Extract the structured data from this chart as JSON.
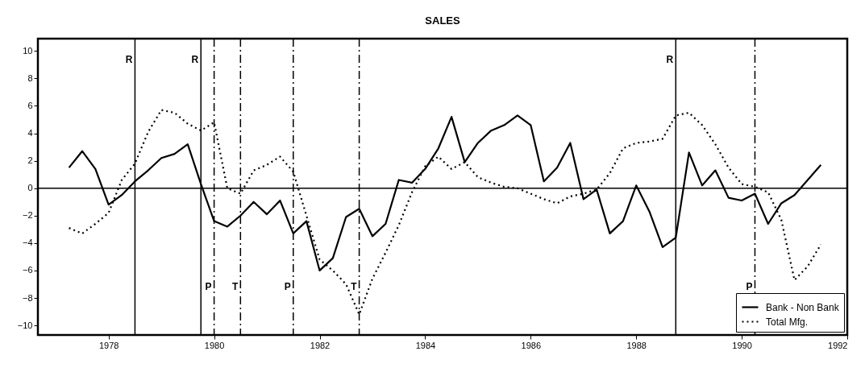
{
  "chart_data": {
    "type": "line",
    "title": "SALES",
    "x": [
      1977.25,
      1977.5,
      1977.75,
      1978.0,
      1978.25,
      1978.5,
      1978.75,
      1979.0,
      1979.25,
      1979.5,
      1979.75,
      1980.0,
      1980.25,
      1980.5,
      1980.75,
      1981.0,
      1981.25,
      1981.5,
      1981.75,
      1982.0,
      1982.25,
      1982.5,
      1982.75,
      1983.0,
      1983.25,
      1983.5,
      1983.75,
      1984.0,
      1984.25,
      1984.5,
      1984.75,
      1985.0,
      1985.25,
      1985.5,
      1985.75,
      1986.0,
      1986.25,
      1986.5,
      1986.75,
      1987.0,
      1987.25,
      1987.5,
      1987.75,
      1988.0,
      1988.25,
      1988.5,
      1988.75,
      1989.0,
      1989.25,
      1989.5,
      1989.75,
      1990.0,
      1990.25,
      1990.5,
      1990.75,
      1991.0,
      1991.25,
      1991.5
    ],
    "series": [
      {
        "name": "Bank - Non Bank",
        "color": "#000000",
        "line_style": "solid",
        "values": [
          1.5,
          2.7,
          1.4,
          -1.2,
          -0.5,
          0.5,
          1.3,
          2.2,
          2.5,
          3.2,
          0.3,
          -2.4,
          -2.8,
          -2.0,
          -1.0,
          -1.9,
          -0.9,
          -3.3,
          -2.4,
          -6.0,
          -5.1,
          -2.1,
          -1.5,
          -3.5,
          -2.6,
          0.6,
          0.4,
          1.4,
          2.9,
          5.2,
          1.9,
          3.3,
          4.2,
          4.6,
          5.3,
          4.6,
          0.5,
          1.5,
          3.3,
          -0.8,
          -0.1,
          -3.3,
          -2.4,
          0.2,
          -1.7,
          -4.3,
          -3.6,
          2.6,
          0.2,
          1.3,
          -0.7,
          -0.9,
          -0.4,
          -2.6,
          -1.1,
          -0.5,
          0.6,
          1.7
        ]
      },
      {
        "name": "Total Mfg.",
        "color": "#000000",
        "line_style": "dotted",
        "values": [
          -2.9,
          -3.3,
          -2.6,
          -1.8,
          0.6,
          1.8,
          4.1,
          5.7,
          5.5,
          4.7,
          4.2,
          4.8,
          0.0,
          -0.4,
          1.3,
          1.7,
          2.3,
          1.2,
          -2.0,
          -5.2,
          -6.0,
          -7.0,
          -9.2,
          -6.6,
          -4.7,
          -2.7,
          -0.3,
          1.6,
          2.3,
          1.4,
          1.9,
          0.8,
          0.4,
          0.1,
          0.0,
          -0.4,
          -0.8,
          -1.1,
          -0.6,
          -0.4,
          -0.1,
          1.1,
          2.9,
          3.3,
          3.4,
          3.6,
          5.3,
          5.5,
          4.6,
          3.2,
          1.5,
          0.3,
          0.1,
          -0.3,
          -2.3,
          -6.7,
          -5.7,
          -4.1
        ]
      }
    ],
    "xlim": [
      1976.66,
      1992
    ],
    "xticks": [
      1978,
      1980,
      1982,
      1984,
      1986,
      1988,
      1990,
      1992
    ],
    "ylim": [
      -10.7,
      10.9
    ],
    "yticks": [
      -10,
      -8,
      -6,
      -4,
      -2,
      0,
      2,
      4,
      6,
      8,
      10
    ],
    "ref_lines": [
      {
        "axis": "y",
        "value": 0,
        "label": null,
        "line_style": "solid"
      },
      {
        "axis": "x",
        "value": 1978.5,
        "label": "R",
        "line_style": "solid"
      },
      {
        "axis": "x",
        "value": 1979.75,
        "label": "R",
        "line_style": "solid"
      },
      {
        "axis": "x",
        "value": 1988.75,
        "label": "R",
        "line_style": "solid"
      },
      {
        "axis": "x",
        "value": 1980.0,
        "label": "P",
        "line_style": "dashdot"
      },
      {
        "axis": "x",
        "value": 1980.5,
        "label": "T",
        "line_style": "dashdot"
      },
      {
        "axis": "x",
        "value": 1981.5,
        "label": "P",
        "line_style": "dashdot"
      },
      {
        "axis": "x",
        "value": 1982.75,
        "label": "T",
        "line_style": "dashdot"
      },
      {
        "axis": "x",
        "value": 1990.25,
        "label": "P",
        "line_style": "dashdot"
      }
    ],
    "grid": false,
    "legend": "bottom right",
    "marker": "none"
  }
}
